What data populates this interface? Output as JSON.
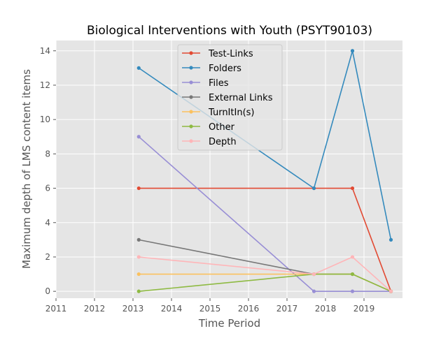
{
  "chart_data": {
    "type": "line",
    "title": "Biological Interventions with Youth (PSYT90103)",
    "xlabel": "Time Period",
    "ylabel": "Maximum depth of LMS content items",
    "xlim": [
      2011.0,
      2020.0
    ],
    "ylim": [
      -0.4,
      14.6
    ],
    "xticks": [
      2011,
      2012,
      2013,
      2014,
      2015,
      2016,
      2017,
      2018,
      2019
    ],
    "yticks": [
      0,
      2,
      4,
      6,
      8,
      10,
      12,
      14
    ],
    "grid": true,
    "background": "#e5e5e5",
    "legend_position": "top-center",
    "series": [
      {
        "name": "Test-Links",
        "color": "#e24a33",
        "points": [
          [
            2013.15,
            6
          ],
          [
            2017.7,
            6
          ],
          [
            2018.7,
            6
          ],
          [
            2019.7,
            0
          ]
        ]
      },
      {
        "name": "Folders",
        "color": "#348abd",
        "points": [
          [
            2013.15,
            13
          ],
          [
            2017.7,
            6
          ],
          [
            2018.7,
            14
          ],
          [
            2019.7,
            3
          ]
        ]
      },
      {
        "name": "Files",
        "color": "#988ed5",
        "points": [
          [
            2013.15,
            9
          ],
          [
            2017.7,
            0
          ],
          [
            2018.7,
            0
          ],
          [
            2019.7,
            0
          ]
        ]
      },
      {
        "name": "External Links",
        "color": "#777777",
        "points": [
          [
            2013.15,
            3
          ],
          [
            2017.7,
            1
          ],
          [
            2018.7,
            1
          ],
          [
            2019.7,
            0
          ]
        ]
      },
      {
        "name": "TurnItIn(s)",
        "color": "#fbc15e",
        "points": [
          [
            2013.15,
            1
          ],
          [
            2017.7,
            1
          ],
          [
            2018.7,
            1
          ],
          [
            2019.7,
            0
          ]
        ]
      },
      {
        "name": "Other",
        "color": "#8eba42",
        "points": [
          [
            2013.15,
            0
          ],
          [
            2017.7,
            1
          ],
          [
            2018.7,
            1
          ],
          [
            2019.7,
            0
          ]
        ]
      },
      {
        "name": "Depth",
        "color": "#ffb5b8",
        "points": [
          [
            2013.15,
            2
          ],
          [
            2017.7,
            1
          ],
          [
            2018.7,
            2
          ],
          [
            2019.7,
            0
          ]
        ]
      }
    ]
  }
}
